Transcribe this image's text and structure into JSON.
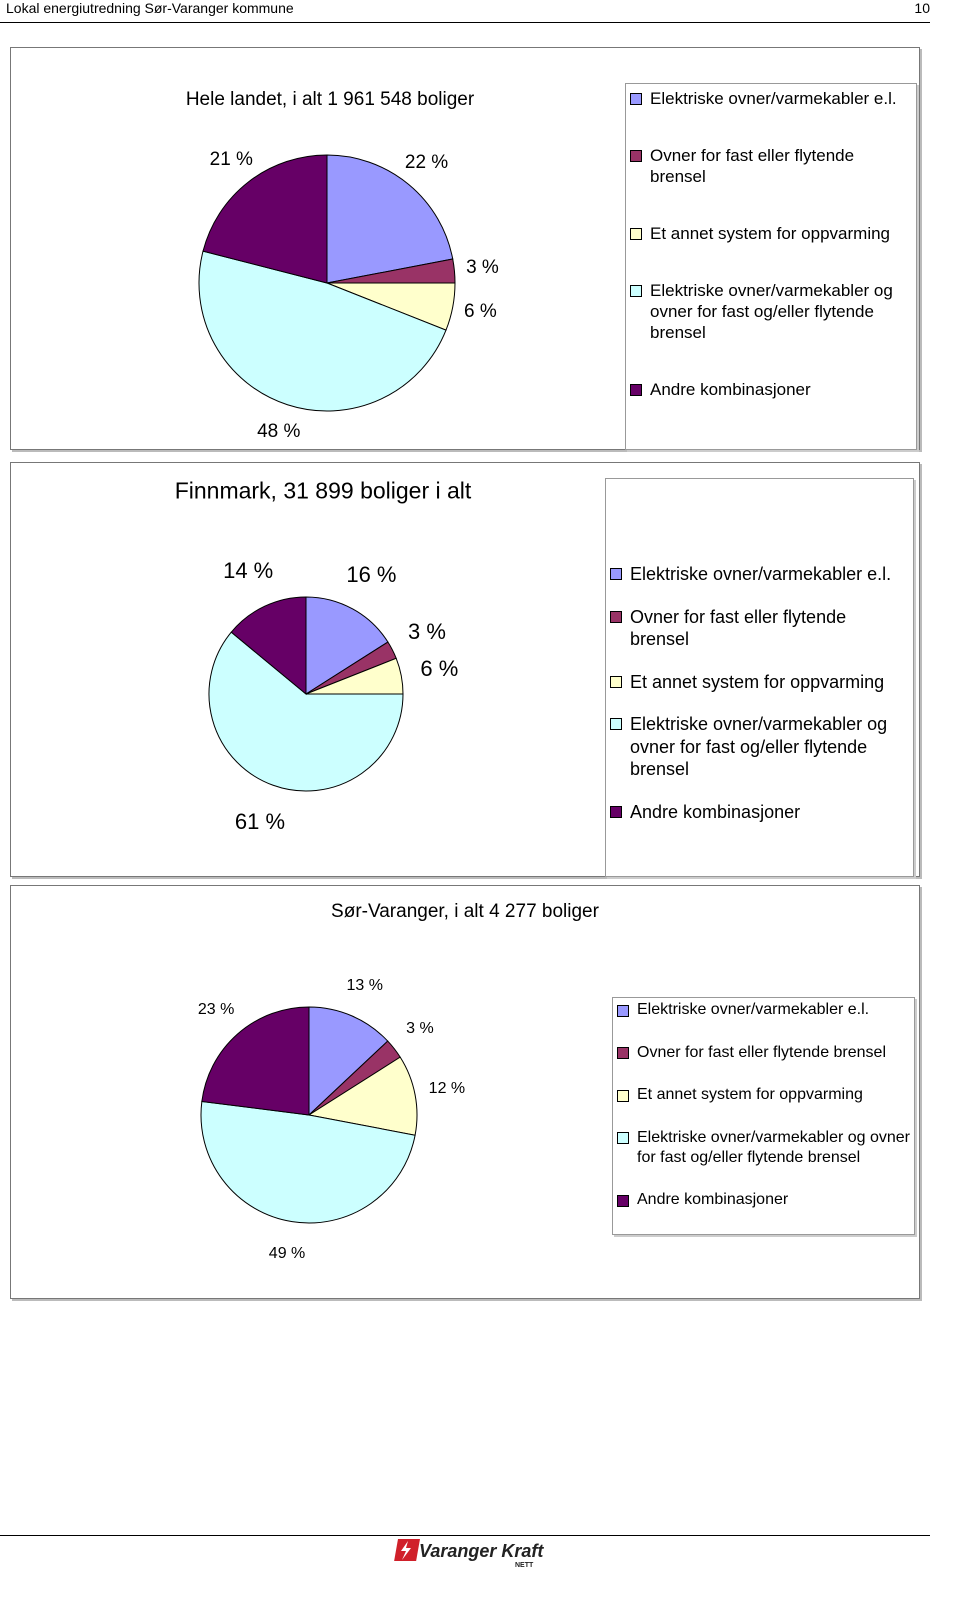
{
  "header": {
    "title": "Lokal energiutredning Sør-Varanger kommune",
    "page": "10"
  },
  "chart_data": [
    {
      "type": "pie",
      "title": "Hele landet, i alt 1 961 548 boliger",
      "categories": [
        "Elektriske ovner/varmekabler e.l.",
        "Ovner for fast eller flytende brensel",
        "Et annet system for oppvarming",
        "Elektriske ovner/varmekabler og ovner for fast og/eller flytende brensel",
        "Andre kombinasjoner"
      ],
      "values": [
        22,
        3,
        6,
        48,
        21
      ],
      "value_labels": [
        "22 %",
        "3 %",
        "6 %",
        "48 %",
        "21 %"
      ],
      "colors": [
        "#9999ff",
        "#993366",
        "#ffffcc",
        "#ccffff",
        "#660066"
      ]
    },
    {
      "type": "pie",
      "title": "Finnmark, 31 899 boliger i alt",
      "categories": [
        "Elektriske ovner/varmekabler e.l.",
        "Ovner for fast eller flytende brensel",
        "Et annet system for oppvarming",
        "Elektriske ovner/varmekabler og ovner for fast og/eller flytende brensel",
        "Andre kombinasjoner"
      ],
      "values": [
        16,
        3,
        6,
        61,
        14
      ],
      "value_labels": [
        "16 %",
        "3 %",
        "6 %",
        "61 %",
        "14 %"
      ],
      "colors": [
        "#9999ff",
        "#993366",
        "#ffffcc",
        "#ccffff",
        "#660066"
      ]
    },
    {
      "type": "pie",
      "title": "Sør-Varanger, i alt 4 277 boliger",
      "categories": [
        "Elektriske ovner/varmekabler e.l.",
        "Ovner for fast eller flytende brensel",
        "Et annet system for oppvarming",
        "Elektriske ovner/varmekabler og ovner for fast og/eller flytende brensel",
        "Andre kombinasjoner"
      ],
      "values": [
        13,
        3,
        12,
        49,
        23
      ],
      "value_labels": [
        "13 %",
        "3 %",
        "12 %",
        "49 %",
        "23 %"
      ],
      "colors": [
        "#9999ff",
        "#993366",
        "#ffffcc",
        "#ccffff",
        "#660066"
      ]
    }
  ],
  "footer": {
    "logo_text": "Varanger Kraft",
    "logo_sub": "NETT"
  }
}
